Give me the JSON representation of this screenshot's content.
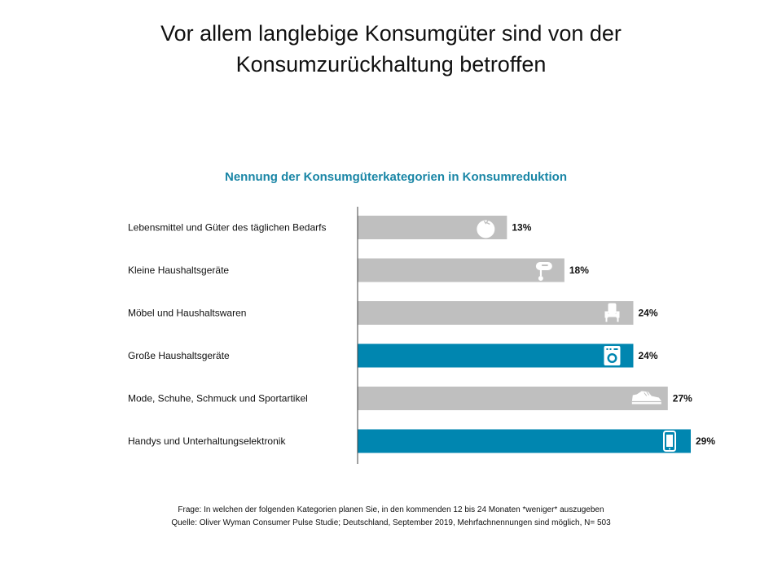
{
  "title_line1": "Vor allem langlebige Konsumgüter sind von der",
  "title_line2": "Konsumzurückhaltung betroffen",
  "footer": {
    "question": "Frage: In welchen der folgenden Kategorien planen Sie, in den kommenden 12 bis 24 Monaten *weniger* auszugeben",
    "source": "Quelle: Oliver Wyman Consumer Pulse Studie; Deutschland, September 2019, Mehrfachnennungen sind möglich, N= 503"
  },
  "colors": {
    "gray": "#bfbfbf",
    "teal": "#0086b0",
    "title_teal": "#1a86a6"
  },
  "chart_data": {
    "type": "bar",
    "orientation": "horizontal",
    "title": "Nennung der Konsumgüterkategorien in Konsumreduktion",
    "categories": [
      "Lebensmittel und Güter des täglichen Bedarfs",
      "Kleine Haushaltsgeräte",
      "Möbel und Haushaltswaren",
      "Große Haushaltsgeräte",
      "Mode, Schuhe, Schmuck und Sportartikel",
      "Handys und Unterhaltungselektronik"
    ],
    "values": [
      13,
      18,
      24,
      24,
      27,
      29
    ],
    "labels": [
      "13%",
      "18%",
      "24%",
      "24%",
      "27%",
      "29%"
    ],
    "highlight": [
      false,
      false,
      false,
      true,
      false,
      true
    ],
    "icons": [
      "tomato-icon",
      "hand-mixer-icon",
      "armchair-icon",
      "washing-machine-icon",
      "sneaker-icon",
      "smartphone-icon"
    ],
    "unit": "%",
    "xlim": [
      0,
      29
    ]
  }
}
